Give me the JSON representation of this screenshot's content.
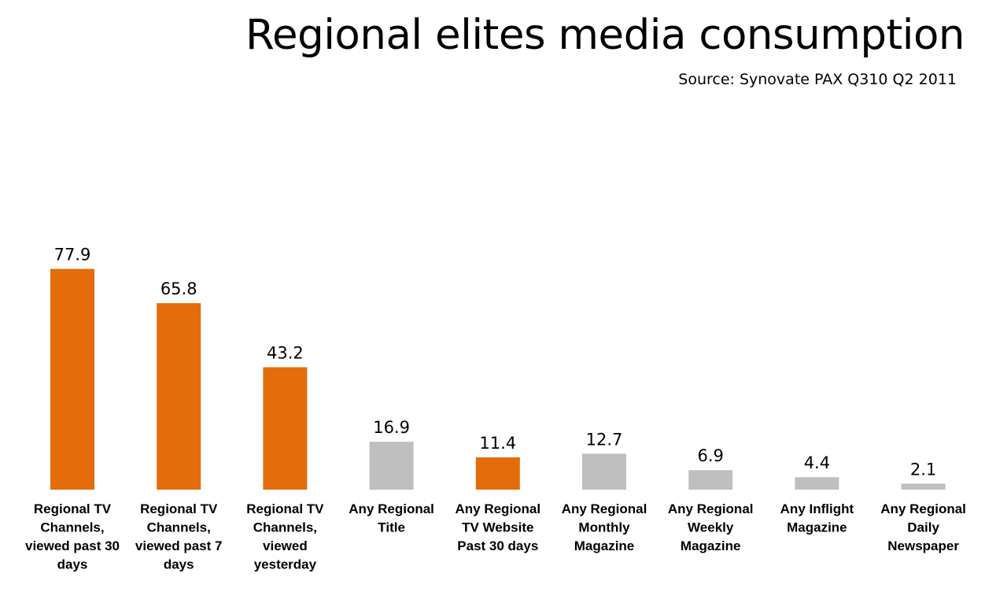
{
  "header": {
    "title": "Regional elites media consumption",
    "source": "Source: Synovate PAX Q310 Q2 2011"
  },
  "colors": {
    "highlight": "#E46C0A",
    "neutral": "#BFBFBF"
  },
  "chart_data": {
    "type": "bar",
    "title": "Regional elites media consumption",
    "subtitle": "Source: Synovate PAX Q310 Q2 2011",
    "categories": [
      [
        "Regional TV",
        "Channels,",
        "viewed past 30",
        "days"
      ],
      [
        "Regional TV",
        "Channels,",
        "viewed past 7",
        "days"
      ],
      [
        "Regional TV",
        "Channels,",
        "viewed",
        "yesterday"
      ],
      [
        "Any Regional",
        "Title"
      ],
      [
        "Any Regional",
        "TV Website",
        "Past 30 days"
      ],
      [
        "Any Regional",
        "Monthly",
        "Magazine"
      ],
      [
        "Any Regional",
        "Weekly",
        "Magazine"
      ],
      [
        "Any Inflight",
        "Magazine"
      ],
      [
        "Any Regional",
        "Daily",
        "Newspaper"
      ]
    ],
    "values": [
      77.9,
      65.8,
      43.2,
      16.9,
      11.4,
      12.7,
      6.9,
      4.4,
      2.1
    ],
    "value_labels": [
      "77.9",
      "65.8",
      "43.2",
      "16.9",
      "11.4",
      "12.7",
      "6.9",
      "4.4",
      "2.1"
    ],
    "bar_colors": [
      "highlight",
      "highlight",
      "highlight",
      "neutral",
      "highlight",
      "neutral",
      "neutral",
      "neutral",
      "neutral"
    ],
    "ylim": [
      0,
      100
    ],
    "xlabel": "",
    "ylabel": "",
    "grid": false,
    "legend": "none"
  }
}
